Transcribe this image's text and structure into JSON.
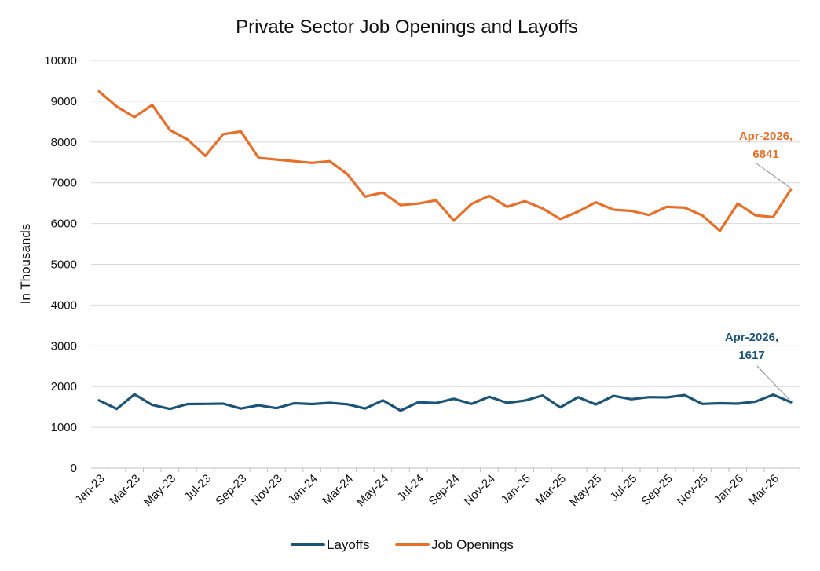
{
  "chart_data": {
    "type": "line",
    "title": "Private Sector Job Openings and Layoffs",
    "xlabel": "",
    "ylabel": "In Thousands",
    "ylim": [
      0,
      10000
    ],
    "yticks": [
      0,
      1000,
      2000,
      3000,
      4000,
      5000,
      6000,
      7000,
      8000,
      9000,
      10000
    ],
    "grid": true,
    "legend_position": "bottom",
    "tick_labels": [
      "Jan-23",
      "Mar-23",
      "May-23",
      "Jul-23",
      "Sep-23",
      "Nov-23",
      "Jan-24",
      "Mar-24",
      "May-24",
      "Jul-24",
      "Sep-24",
      "Nov-24",
      "Jan-25",
      "Mar-25",
      "May-25",
      "Jul-25",
      "Sep-25",
      "Nov-25",
      "Jan-26",
      "Mar-26"
    ],
    "x": [
      "Jan-23",
      "Feb-23",
      "Mar-23",
      "Apr-23",
      "May-23",
      "Jun-23",
      "Jul-23",
      "Aug-23",
      "Sep-23",
      "Oct-23",
      "Nov-23",
      "Dec-23",
      "Jan-24",
      "Feb-24",
      "Mar-24",
      "Apr-24",
      "May-24",
      "Jun-24",
      "Jul-24",
      "Aug-24",
      "Sep-24",
      "Oct-24",
      "Nov-24",
      "Dec-24",
      "Jan-25",
      "Feb-25",
      "Mar-25",
      "Apr-25",
      "May-25",
      "Jun-25",
      "Jul-25",
      "Aug-25",
      "Sep-25",
      "Oct-25",
      "Nov-25",
      "Dec-25",
      "Jan-26",
      "Feb-26",
      "Mar-26",
      "Apr-26"
    ],
    "series": [
      {
        "name": "Layoffs",
        "color": "#1b5477",
        "values": [
          1660,
          1450,
          1810,
          1550,
          1450,
          1570,
          1575,
          1580,
          1460,
          1540,
          1470,
          1590,
          1570,
          1600,
          1565,
          1460,
          1660,
          1410,
          1615,
          1595,
          1700,
          1575,
          1750,
          1600,
          1655,
          1780,
          1490,
          1740,
          1560,
          1770,
          1690,
          1740,
          1735,
          1790,
          1575,
          1590,
          1580,
          1630,
          1800,
          1617
        ]
      },
      {
        "name": "Job Openings",
        "color": "#e86f2a",
        "values": [
          9240,
          8870,
          8610,
          8910,
          8290,
          8060,
          7660,
          8190,
          8260,
          7610,
          7570,
          7530,
          7490,
          7530,
          7210,
          6660,
          6760,
          6450,
          6490,
          6570,
          6070,
          6480,
          6680,
          6410,
          6550,
          6370,
          6110,
          6290,
          6520,
          6340,
          6310,
          6210,
          6410,
          6390,
          6200,
          5820,
          6490,
          6200,
          6160,
          6841
        ]
      }
    ],
    "annotations": [
      {
        "series": "Job Openings",
        "line1": "Apr-2026,",
        "line2": "6841",
        "color": "#e86f2a"
      },
      {
        "series": "Layoffs",
        "line1": "Apr-2026,",
        "line2": "1617",
        "color": "#1b5477"
      }
    ],
    "gridline_color": "#d9d9d9",
    "axis_color": "#bfbfbf"
  }
}
